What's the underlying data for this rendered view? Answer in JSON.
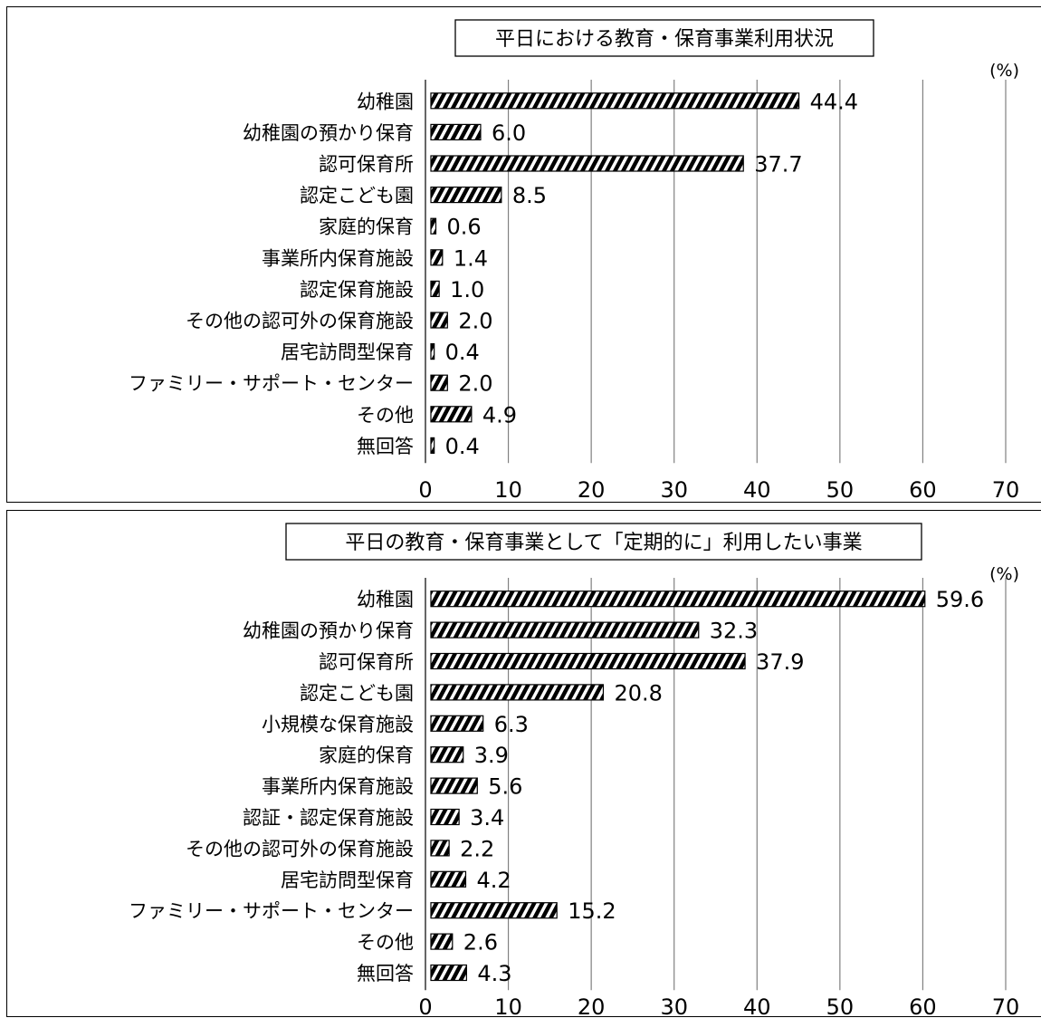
{
  "chart_data": [
    {
      "type": "bar",
      "title": "平日における教育・保育事業利用状況",
      "unit": "(%)",
      "categories": [
        "幼稚園",
        "幼稚園の預かり保育",
        "認可保育所",
        "認定こども園",
        "家庭的保育",
        "事業所内保育施設",
        "認定保育施設",
        "その他の認可外の保育施設",
        "居宅訪問型保育",
        "ファミリー・サポート・センター",
        "その他",
        "無回答"
      ],
      "values": [
        44.4,
        6.0,
        37.7,
        8.5,
        0.6,
        1.4,
        1.0,
        2.0,
        0.4,
        2.0,
        4.9,
        0.4
      ],
      "value_labels": [
        "44.4",
        "6.0",
        "37.7",
        "8.5",
        "0.6",
        "1.4",
        "1.0",
        "2.0",
        "0.4",
        "2.0",
        "4.9",
        "0.4"
      ],
      "xlim": [
        0,
        70
      ],
      "xticks": [
        0,
        10,
        20,
        30,
        40,
        50,
        60,
        70
      ],
      "orientation": "horizontal",
      "grid": true,
      "bar_fill": "diagonal-hatch",
      "colors": {
        "bar_stripe": "#000000",
        "bar_bg": "#ffffff",
        "grid": "#808080"
      }
    },
    {
      "type": "bar",
      "title": "平日の教育・保育事業として「定期的に」利用したい事業",
      "unit": "(%)",
      "categories": [
        "幼稚園",
        "幼稚園の預かり保育",
        "認可保育所",
        "認定こども園",
        "小規模な保育施設",
        "家庭的保育",
        "事業所内保育施設",
        "認証・認定保育施設",
        "その他の認可外の保育施設",
        "居宅訪問型保育",
        "ファミリー・サポート・センター",
        "その他",
        "無回答"
      ],
      "values": [
        59.6,
        32.3,
        37.9,
        20.8,
        6.3,
        3.9,
        5.6,
        3.4,
        2.2,
        4.2,
        15.2,
        2.6,
        4.3
      ],
      "value_labels": [
        "59.6",
        "32.3",
        "37.9",
        "20.8",
        "6.3",
        "3.9",
        "5.6",
        "3.4",
        "2.2",
        "4.2",
        "15.2",
        "2.6",
        "4.3"
      ],
      "xlim": [
        0,
        70
      ],
      "xticks": [
        0,
        10,
        20,
        30,
        40,
        50,
        60,
        70
      ],
      "orientation": "horizontal",
      "grid": true,
      "bar_fill": "diagonal-hatch",
      "colors": {
        "bar_stripe": "#000000",
        "bar_bg": "#ffffff",
        "grid": "#808080"
      }
    }
  ]
}
